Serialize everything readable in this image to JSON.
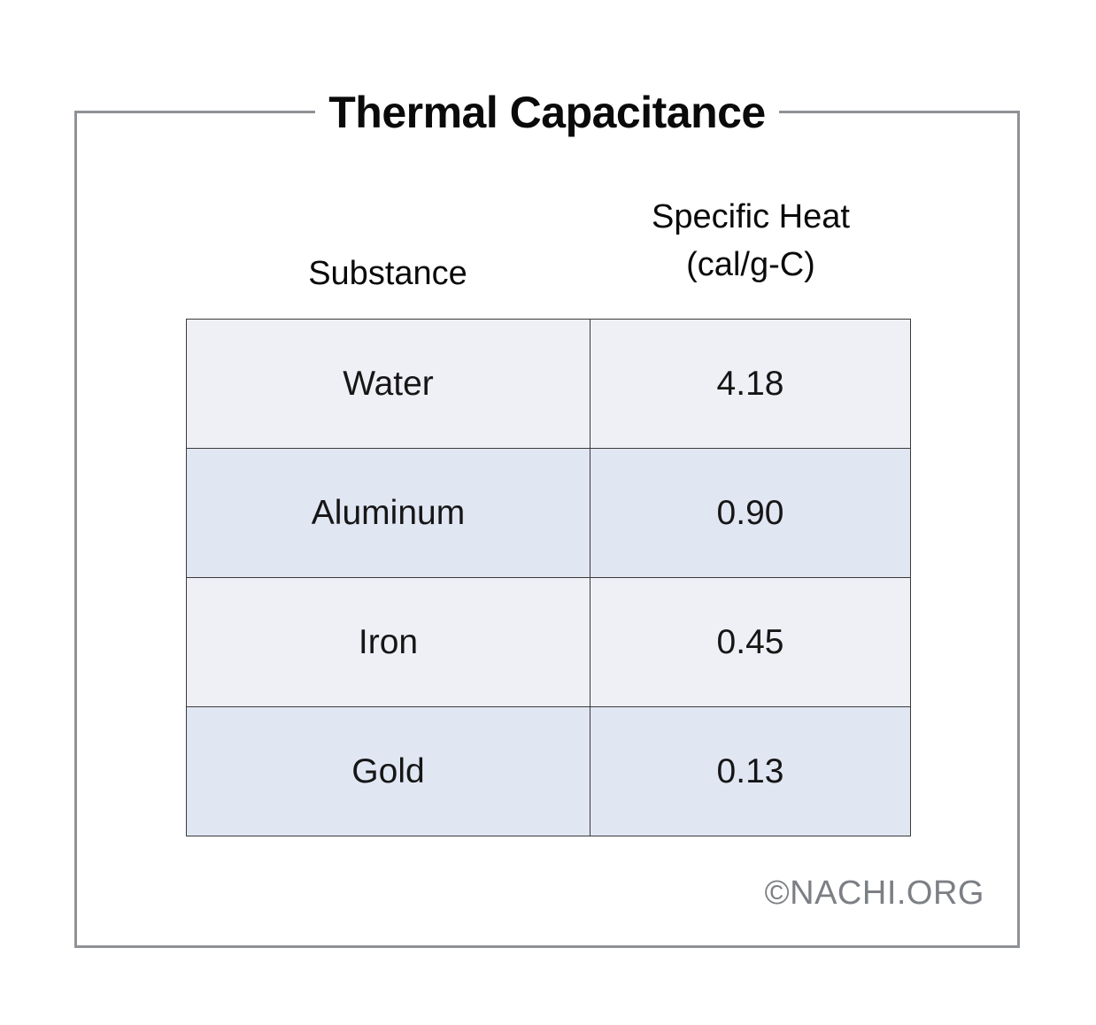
{
  "chart_data": {
    "type": "table",
    "title": "Thermal Capacitance",
    "columns": [
      {
        "label": "Substance"
      },
      {
        "label_lines": [
          "Specific Heat",
          "(cal/g-C)"
        ]
      }
    ],
    "rows": [
      {
        "substance": "Water",
        "specific_heat": "4.18"
      },
      {
        "substance": "Aluminum",
        "specific_heat": "0.90"
      },
      {
        "substance": "Iron",
        "specific_heat": "0.45"
      },
      {
        "substance": "Gold",
        "specific_heat": "0.13"
      }
    ],
    "credit": "©NACHI.ORG"
  },
  "colors": {
    "row_light": "#eff0f5",
    "row_blue": "#e1e6f3",
    "frame": "#8e9195",
    "credit_text": "#7c7f84"
  }
}
